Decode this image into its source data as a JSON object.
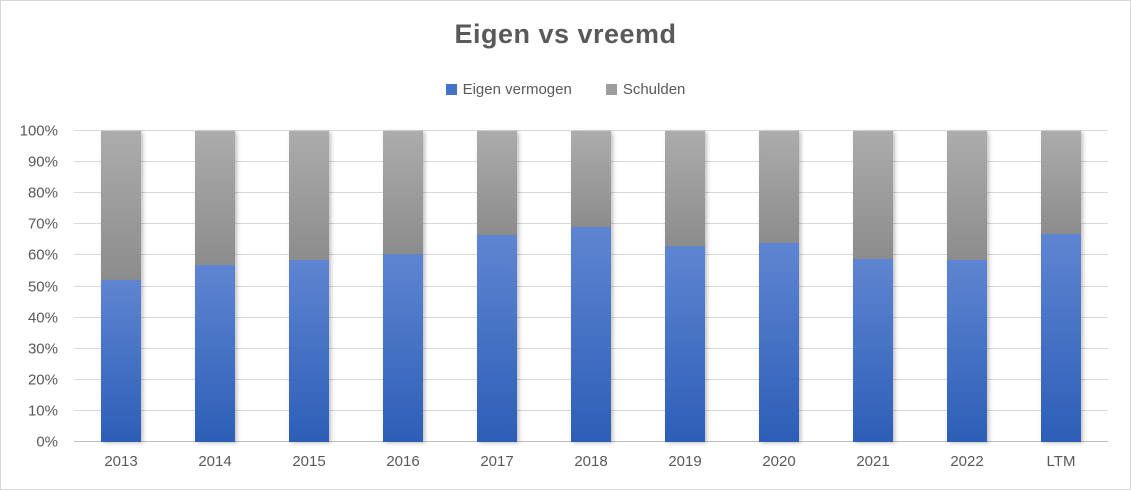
{
  "chart_data": {
    "type": "bar",
    "stacked": true,
    "orientation": "vertical",
    "title": "Eigen vs vreemd",
    "categories": [
      "2013",
      "2014",
      "2015",
      "2016",
      "2017",
      "2018",
      "2019",
      "2020",
      "2021",
      "2022",
      "LTM"
    ],
    "series": [
      {
        "name": "Eigen vermogen",
        "values": [
          52,
          57,
          58.5,
          60.5,
          66.5,
          69,
          63,
          64,
          59,
          58.5,
          67
        ],
        "color": "#4472c4",
        "gradient_top": "#5e85d2",
        "gradient_bottom": "#2d5eb7"
      },
      {
        "name": "Schulden",
        "values": [
          48,
          43,
          41.5,
          39.5,
          33.5,
          31,
          37,
          36,
          41,
          41.5,
          33
        ],
        "color": "#9d9d9d",
        "gradient_top": "#acacac",
        "gradient_bottom": "#8c8c8c"
      }
    ],
    "xlabel": "",
    "ylabel": "",
    "ylim": [
      0,
      100
    ],
    "y_ticks": [
      "0%",
      "10%",
      "20%",
      "30%",
      "40%",
      "50%",
      "60%",
      "70%",
      "80%",
      "90%",
      "100%"
    ],
    "grid": true,
    "legend_position": "top",
    "text_color": "#595959",
    "gridline_color": "#d9d9d9"
  }
}
